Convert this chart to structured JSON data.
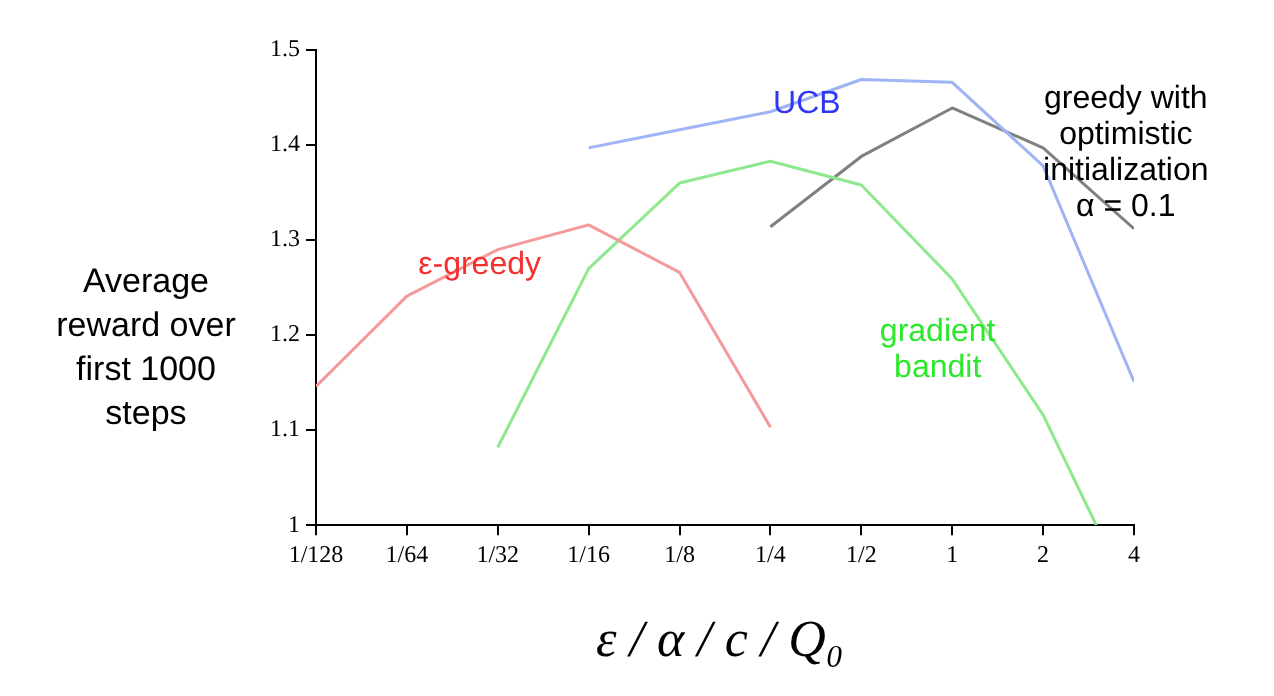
{
  "chart_data": {
    "type": "line",
    "xlabel": "ε / α / c / Q₀",
    "ylabel": "Average reward over first 1000 steps",
    "log": "x",
    "xlim": [
      0.0078125,
      4
    ],
    "xticks": [
      {
        "value": 0.0078125,
        "label": "1/128"
      },
      {
        "value": 0.015625,
        "label": "1/64"
      },
      {
        "value": 0.03125,
        "label": "1/32"
      },
      {
        "value": 0.0625,
        "label": "1/16"
      },
      {
        "value": 0.125,
        "label": "1/8"
      },
      {
        "value": 0.25,
        "label": "1/4"
      },
      {
        "value": 0.5,
        "label": "1/2"
      },
      {
        "value": 1,
        "label": "1"
      },
      {
        "value": 2,
        "label": "2"
      },
      {
        "value": 4,
        "label": "4"
      }
    ],
    "ylim": [
      1,
      1.5
    ],
    "yticks": [
      1,
      1.1,
      1.2,
      1.3,
      1.4,
      1.5
    ],
    "grid": false,
    "legend": false,
    "marker": "none",
    "series": [
      {
        "name": "ε-greedy",
        "color": "#f59a9a",
        "x": [
          0.0078125,
          0.015625,
          0.03125,
          0.0625,
          0.125,
          0.25
        ],
        "values": [
          1.146,
          1.241,
          1.29,
          1.316,
          1.266,
          1.103
        ]
      },
      {
        "name": "gradient bandit",
        "color": "#8ee88e",
        "x": [
          0.03125,
          0.0625,
          0.125,
          0.25,
          0.5,
          1,
          2,
          3
        ],
        "values": [
          1.082,
          1.27,
          1.36,
          1.383,
          1.358,
          1.259,
          1.116,
          1.0
        ]
      },
      {
        "name": "UCB",
        "color": "#9fb4f5",
        "x": [
          0.0625,
          0.125,
          0.25,
          0.5,
          1,
          2,
          4
        ],
        "values": [
          1.397,
          1.416,
          1.435,
          1.469,
          1.466,
          1.378,
          1.151
        ]
      },
      {
        "name": "greedy with optimistic initialization α = 0.1",
        "color": "#808080",
        "x": [
          0.25,
          0.5,
          1,
          2,
          4
        ],
        "values": [
          1.314,
          1.388,
          1.439,
          1.397,
          1.312
        ]
      }
    ]
  }
}
